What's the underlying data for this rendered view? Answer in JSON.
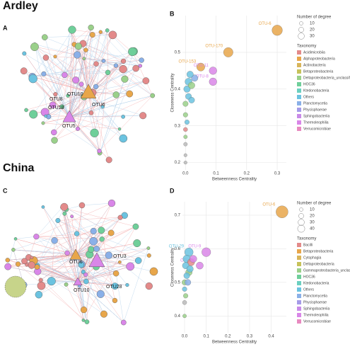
{
  "headings": [
    "Ardley",
    "China"
  ],
  "networks": [
    {
      "panel": "A",
      "labels": [
        "OTU10",
        "OTU8",
        "OTU6",
        "OTU18",
        "OTU5"
      ]
    },
    {
      "panel": "C",
      "labels": [
        "OTU6",
        "OTU3",
        "OTU10",
        "OTU28"
      ]
    }
  ],
  "chart_data": [
    {
      "type": "scatter",
      "panel": "B",
      "xlabel": "Betweenness Centrality",
      "ylabel": "Closeness Centrality",
      "xlim": [
        -0.01,
        0.33
      ],
      "ylim": [
        0.18,
        0.6
      ],
      "xticks": [
        {
          "value": 0,
          "label": "0.0"
        },
        0.1,
        0.2,
        0.3
      ],
      "yticks": [
        0.2,
        0.3,
        0.4,
        0.5
      ],
      "x": [
        0.3,
        0.14,
        0.05,
        0.09,
        0.09,
        0.01,
        0.005,
        0.02,
        0.01,
        0,
        0.02,
        0,
        0.005,
        0,
        0,
        0,
        0,
        0,
        0.03,
        0.015
      ],
      "values": [
        0.56,
        0.5,
        0.46,
        0.45,
        0.42,
        0.42,
        0.4,
        0.41,
        0.38,
        0.36,
        0.37,
        0.33,
        0.31,
        0.29,
        0.27,
        0.25,
        0.22,
        0.2,
        0.43,
        0.44
      ],
      "sizes": [
        30,
        25,
        18,
        16,
        16,
        14,
        12,
        12,
        10,
        8,
        10,
        6,
        6,
        5,
        4,
        4,
        3,
        3,
        12,
        12
      ],
      "colors": [
        "#e8a64a",
        "#e8a64a",
        "#e8a64a",
        "#d986e8",
        "#d986e8",
        "#6bc3e0",
        "#6bc3e0",
        "#9ad08a",
        "#6bc3e0",
        "#9ad08a",
        "#6bc3e0",
        "#9ad08a",
        "#6bc3e0",
        "#e38a8a",
        "#9ad08a",
        "#bbbbbb",
        "#bbbbbb",
        "#bbbbbb",
        "#8ab0e8",
        "#6bc3e0"
      ],
      "point_labels": [
        "OTU-6",
        "OTU-170",
        "OTU-153",
        "OTU-11",
        "OTU-8",
        null,
        null,
        null,
        null,
        null,
        null,
        null,
        null,
        null,
        null,
        null,
        null,
        null,
        null,
        null
      ],
      "size_legend": {
        "title": "Number of degree",
        "values": [
          10,
          20,
          30
        ]
      },
      "taxonomy": {
        "title": "Taxonomy",
        "names": [
          "Acidimicrobiia",
          "Alphaproteobacteria",
          "Actinobacteria",
          "Betaproteobacteria",
          "Deltaproteobacteria_unclassified",
          "HOC36",
          "Ktedonobacteria",
          "Others",
          "Planctomycetia",
          "Phycisphaerae",
          "Sphingobacteriia",
          "Thermoleophilia",
          "Verrucomicrobiae"
        ],
        "colors": [
          "#e38a8a",
          "#e8a64a",
          "#d8b55a",
          "#c7c25a",
          "#9ad08a",
          "#6fcf9a",
          "#6bd0c0",
          "#6bc3e0",
          "#8ab0e8",
          "#a59be8",
          "#c98ae8",
          "#d986e8",
          "#e88ac0"
        ]
      }
    },
    {
      "type": "scatter",
      "panel": "D",
      "xlabel": "Betweenness Centrality",
      "ylabel": "Closeness Centrality",
      "xlim": [
        -0.01,
        0.47
      ],
      "ylim": [
        0.35,
        0.74
      ],
      "xticks": [
        {
          "value": 0,
          "label": "0.0"
        },
        0.1,
        0.2,
        0.3,
        0.4
      ],
      "yticks": [
        0.4,
        0.5,
        0.6,
        0.7
      ],
      "x": [
        0.45,
        0.02,
        0.1,
        0.07,
        0.01,
        0.03,
        0.005,
        0.02,
        0.01,
        0,
        0.015,
        0,
        0.005,
        0,
        0,
        0.04,
        0.025
      ],
      "values": [
        0.71,
        0.59,
        0.59,
        0.55,
        0.57,
        0.56,
        0.55,
        0.53,
        0.52,
        0.5,
        0.5,
        0.48,
        0.46,
        0.44,
        0.4,
        0.57,
        0.54
      ],
      "sizes": [
        40,
        20,
        22,
        14,
        16,
        14,
        12,
        12,
        10,
        8,
        10,
        6,
        6,
        5,
        4,
        14,
        12
      ],
      "colors": [
        "#e8a64a",
        "#6bc3e0",
        "#d986e8",
        "#d986e8",
        "#6bc3e0",
        "#e38a8a",
        "#6bc3e0",
        "#9ad08a",
        "#6bc3e0",
        "#9ad08a",
        "#8ab0e8",
        "#6bc3e0",
        "#9ad08a",
        "#bbbbbb",
        "#9ad08a",
        "#d986e8",
        "#6bc3e0"
      ],
      "point_labels": [
        "OTU-6",
        "OTU-29",
        "OTU-9",
        "OTU-10",
        null,
        null,
        null,
        null,
        null,
        null,
        null,
        null,
        null,
        null,
        null,
        null,
        null
      ],
      "size_legend": {
        "title": "Number of degree",
        "values": [
          10,
          20,
          30,
          40
        ]
      },
      "taxonomy": {
        "title": "Taxonomy",
        "names": [
          "Bacilli",
          "Betaproteobacteria",
          "Cytophagia",
          "Deltaproteobacteria",
          "Gammaproteobacteria_unclassified",
          "HOC36",
          "Ktedonobacteria",
          "Others",
          "Planctomycetia",
          "Phycisphaerae",
          "Sphingobacteriia",
          "Thermoleophilia",
          "Verrucomicrobiae"
        ],
        "colors": [
          "#e38a8a",
          "#e8a64a",
          "#d8b55a",
          "#c7c25a",
          "#9ad08a",
          "#6fcf9a",
          "#6bd0c0",
          "#6bc3e0",
          "#8ab0e8",
          "#a59be8",
          "#c98ae8",
          "#d986e8",
          "#e88ac0"
        ]
      }
    }
  ]
}
